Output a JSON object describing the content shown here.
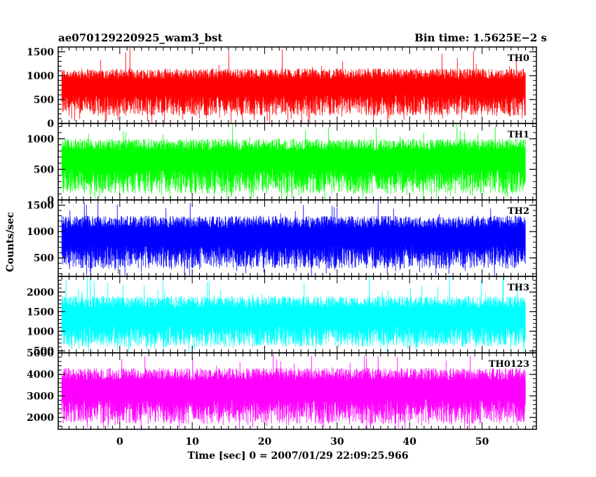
{
  "chart_data": {
    "type": "line",
    "title_left": "ae070129220925_wam3_bst",
    "title_right": "Bin time: 1.5625E−2 s",
    "xlabel": "Time [sec] 0 = 2007/01/29 22:09:25.966",
    "ylabel": "Counts/sec",
    "xlim": [
      -8.5,
      57.5
    ],
    "xticks": [
      0,
      10,
      20,
      30,
      40,
      50
    ],
    "xtick_labels": [
      "0",
      "10",
      "20",
      "30",
      "40",
      "50"
    ],
    "data_range": [
      -8,
      56
    ],
    "bin_time": 0.015625,
    "panels": [
      {
        "name": "TH0",
        "color": "#ff0000",
        "ylim": [
          0,
          1600
        ],
        "yticks": [
          0,
          500,
          1000,
          1500
        ],
        "ytick_labels": [
          "0",
          "500",
          "1000",
          "1500"
        ],
        "mean": 650,
        "lo": 160,
        "hi": 1150,
        "spike": 1600
      },
      {
        "name": "TH1",
        "color": "#00ff00",
        "ylim": [
          0,
          1250
        ],
        "yticks": [
          0,
          500,
          1000
        ],
        "ytick_labels": [
          "0",
          "500",
          "1000"
        ],
        "mean": 560,
        "lo": 100,
        "hi": 1000,
        "spike": 1250
      },
      {
        "name": "TH2",
        "color": "#0000ff",
        "ylim": [
          150,
          1600
        ],
        "yticks": [
          500,
          1000,
          1500
        ],
        "ytick_labels": [
          "500",
          "1000",
          "1500"
        ],
        "mean": 780,
        "lo": 300,
        "hi": 1300,
        "spike": 1600
      },
      {
        "name": "TH3",
        "color": "#00ffff",
        "ylim": [
          450,
          2400
        ],
        "yticks": [
          500,
          1000,
          1500,
          2000
        ],
        "ytick_labels": [
          "500",
          "1000",
          "1500",
          "2000"
        ],
        "mean": 1200,
        "lo": 600,
        "hi": 1900,
        "spike": 2400
      },
      {
        "name": "TH0123",
        "color": "#ff00ff",
        "ylim": [
          1450,
          5000
        ],
        "yticks": [
          2000,
          3000,
          4000,
          5000
        ],
        "ytick_labels": [
          "2000",
          "3000",
          "4000",
          "5000"
        ],
        "mean": 3000,
        "lo": 1700,
        "hi": 4300,
        "spike": 5000
      }
    ],
    "grid": false,
    "legend": "panel labels top-right"
  }
}
